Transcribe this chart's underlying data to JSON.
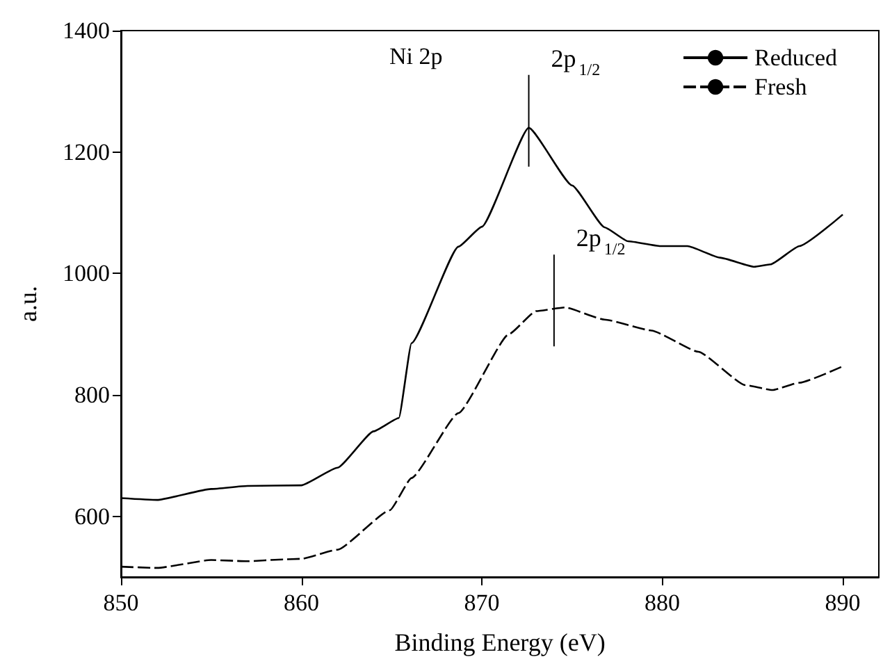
{
  "chart_data": {
    "type": "line",
    "xlabel": "Binding Energy (eV)",
    "ylabel": "a.u.",
    "xlim": [
      850,
      892
    ],
    "xticks": [
      850,
      860,
      870,
      880,
      890
    ],
    "ylim": [
      500,
      1400
    ],
    "yticks": [
      600,
      800,
      1000,
      1200,
      1400
    ],
    "grid": false,
    "legend": "top right",
    "marker": "none",
    "annotations": [
      "Ni 2p",
      {
        "text": "2p$_{1/2}$",
        "x": 872.6,
        "y": 1240
      },
      {
        "text": "2p$_{1/2}$",
        "x": 874.0,
        "y": 944
      }
    ],
    "series": [
      {
        "name": "Reduced",
        "color": "#000000",
        "line_style": "solid",
        "x": [
          850,
          852,
          855,
          857,
          860,
          862,
          864,
          865.4,
          866.1,
          868.7,
          870,
          872.6,
          875,
          876.8,
          878.1,
          879.9,
          881.4,
          883.2,
          885.1,
          886,
          887.6,
          890
        ],
        "values": [
          630,
          627,
          645,
          650,
          651,
          680,
          740,
          762,
          885,
          1044,
          1077,
          1240,
          1145,
          1076,
          1053,
          1045,
          1045,
          1026,
          1011,
          1015,
          1045,
          1097
        ]
      },
      {
        "name": "Fresh",
        "color": "#000000",
        "line_style": "dashed",
        "x": [
          850,
          852,
          855,
          857,
          859,
          860,
          862,
          864.9,
          866.1,
          868.7,
          871.5,
          873,
          874.6,
          876.8,
          879.4,
          882,
          884.6,
          886.1,
          887.6,
          890
        ],
        "values": [
          517,
          515,
          528,
          526,
          529,
          530,
          545,
          610,
          663,
          770,
          900,
          938,
          944,
          924,
          906,
          871,
          816,
          808,
          820,
          847
        ]
      }
    ]
  }
}
